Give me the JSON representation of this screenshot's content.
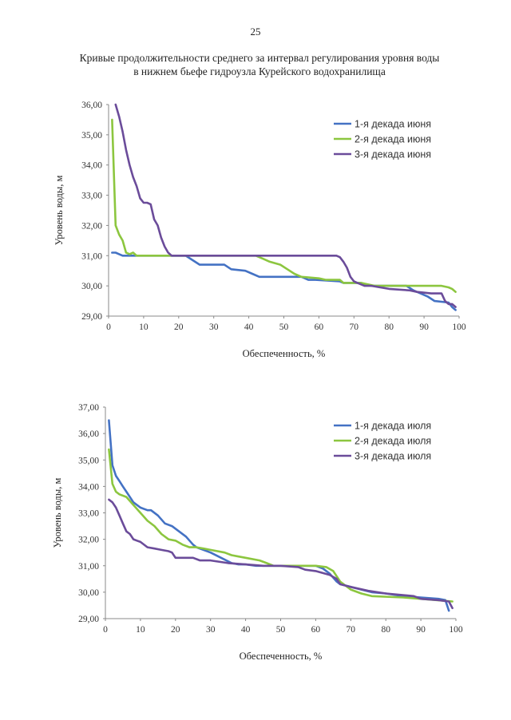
{
  "page": {
    "number": "25"
  },
  "doc_title": {
    "line1": "Кривые продолжительности среднего за интервал регулирования уровня воды",
    "line2": "в нижнем бьефе гидроузла Курейского водохранилища"
  },
  "chart_data": [
    {
      "type": "line",
      "title": "",
      "xlabel": "Обеспеченность, %",
      "ylabel": "Уровень воды, м",
      "xlim": [
        0,
        100
      ],
      "ylim": [
        29,
        36
      ],
      "xticks": [
        "0",
        "10",
        "20",
        "30",
        "40",
        "50",
        "60",
        "70",
        "80",
        "90",
        "100"
      ],
      "yticks": [
        "29,00",
        "30,00",
        "31,00",
        "32,00",
        "33,00",
        "34,00",
        "35,00",
        "36,00"
      ],
      "grid": false,
      "legend_position": "top-right",
      "series": [
        {
          "name": "1-я декада июня",
          "color": "#4472C4",
          "x": [
            1,
            2,
            3,
            4,
            8,
            22,
            24,
            26,
            33,
            35,
            39,
            41,
            43,
            50,
            55,
            57,
            59,
            66,
            67,
            72,
            75,
            85,
            87,
            89,
            91,
            93,
            97,
            98,
            99
          ],
          "y": [
            31.1,
            31.1,
            31.05,
            31.0,
            31.0,
            31.0,
            30.85,
            30.7,
            30.7,
            30.55,
            30.5,
            30.4,
            30.3,
            30.3,
            30.3,
            30.2,
            30.2,
            30.15,
            30.1,
            30.1,
            30.0,
            30.0,
            29.85,
            29.75,
            29.65,
            29.5,
            29.45,
            29.3,
            29.2
          ]
        },
        {
          "name": "2-я декада июня",
          "color": "#8CC63F",
          "x": [
            1,
            2,
            3,
            4,
            5,
            6,
            7,
            8,
            10,
            20,
            42,
            44,
            46,
            49,
            51,
            53,
            55,
            60,
            62,
            66,
            67,
            72,
            74,
            76,
            95,
            97,
            98,
            99
          ],
          "y": [
            35.5,
            32.0,
            31.7,
            31.5,
            31.1,
            31.05,
            31.1,
            31.0,
            31.0,
            31.0,
            31.0,
            30.9,
            30.8,
            30.7,
            30.55,
            30.4,
            30.3,
            30.25,
            30.2,
            30.2,
            30.1,
            30.1,
            30.05,
            30.0,
            30.0,
            29.95,
            29.9,
            29.8
          ]
        },
        {
          "name": "3-я декада июня",
          "color": "#6B4C9A",
          "x": [
            2,
            3,
            4,
            5,
            6,
            7,
            8,
            9,
            10,
            11,
            12,
            13,
            14,
            15,
            16,
            17,
            18,
            20,
            65,
            66,
            67,
            68,
            69,
            70,
            71,
            73,
            75,
            80,
            86,
            88,
            92,
            95,
            96,
            97,
            98,
            99
          ],
          "y": [
            36.0,
            35.6,
            35.1,
            34.5,
            34.0,
            33.6,
            33.3,
            32.9,
            32.75,
            32.75,
            32.7,
            32.2,
            32.0,
            31.6,
            31.3,
            31.1,
            31.0,
            31.0,
            31.0,
            30.95,
            30.8,
            30.6,
            30.3,
            30.15,
            30.1,
            30.0,
            30.0,
            29.9,
            29.85,
            29.8,
            29.75,
            29.75,
            29.5,
            29.4,
            29.4,
            29.3
          ]
        }
      ]
    },
    {
      "type": "line",
      "title": "",
      "xlabel": "Обеспеченность, %",
      "ylabel": "Уровень воды, м",
      "xlim": [
        0,
        100
      ],
      "ylim": [
        29,
        37
      ],
      "xticks": [
        "0",
        "10",
        "20",
        "30",
        "40",
        "50",
        "60",
        "70",
        "80",
        "90",
        "100"
      ],
      "yticks": [
        "29,00",
        "30,00",
        "31,00",
        "32,00",
        "33,00",
        "34,00",
        "35,00",
        "36,00",
        "37,00"
      ],
      "grid": false,
      "legend_position": "top-right",
      "series": [
        {
          "name": "1-я декада июля",
          "color": "#4472C4",
          "x": [
            1,
            2,
            3,
            4,
            5,
            6,
            8,
            10,
            12,
            13,
            15,
            17,
            19,
            21,
            23,
            25,
            26,
            28,
            30,
            33,
            36,
            38,
            40,
            43,
            45,
            50,
            55,
            60,
            62,
            64,
            66,
            67,
            70,
            73,
            76,
            80,
            85,
            90,
            95,
            97,
            98
          ],
          "y": [
            36.5,
            34.8,
            34.4,
            34.2,
            34.0,
            33.8,
            33.4,
            33.2,
            33.1,
            33.1,
            32.9,
            32.6,
            32.5,
            32.3,
            32.1,
            31.8,
            31.7,
            31.6,
            31.5,
            31.3,
            31.1,
            31.05,
            31.05,
            31.0,
            31.0,
            31.0,
            31.0,
            31.0,
            30.9,
            30.7,
            30.4,
            30.3,
            30.2,
            30.1,
            30.0,
            29.95,
            29.85,
            29.8,
            29.75,
            29.7,
            29.3
          ]
        },
        {
          "name": "2-я декада июля",
          "color": "#8CC63F",
          "x": [
            1,
            2,
            3,
            4,
            6,
            8,
            10,
            12,
            14,
            16,
            18,
            20,
            22,
            24,
            26,
            28,
            30,
            34,
            36,
            38,
            40,
            44,
            46,
            48,
            55,
            60,
            63,
            65,
            66,
            67,
            70,
            73,
            76,
            85,
            99
          ],
          "y": [
            35.4,
            34.1,
            33.8,
            33.7,
            33.6,
            33.3,
            33.0,
            32.7,
            32.5,
            32.2,
            32.0,
            31.95,
            31.8,
            31.7,
            31.7,
            31.65,
            31.6,
            31.5,
            31.4,
            31.35,
            31.3,
            31.2,
            31.1,
            31.0,
            31.0,
            31.0,
            30.95,
            30.8,
            30.6,
            30.4,
            30.1,
            29.95,
            29.85,
            29.8,
            29.65
          ]
        },
        {
          "name": "3-я декада июля",
          "color": "#6B4C9A",
          "x": [
            1,
            2,
            3,
            4,
            5,
            6,
            7,
            8,
            9,
            10,
            12,
            14,
            16,
            18,
            19,
            20,
            22,
            25,
            27,
            30,
            35,
            40,
            45,
            50,
            55,
            57,
            60,
            64,
            66,
            67,
            70,
            75,
            80,
            88,
            90,
            95,
            98,
            99
          ],
          "y": [
            33.5,
            33.4,
            33.2,
            32.9,
            32.6,
            32.3,
            32.2,
            32.0,
            31.95,
            31.9,
            31.7,
            31.65,
            31.6,
            31.55,
            31.5,
            31.3,
            31.3,
            31.3,
            31.2,
            31.2,
            31.1,
            31.05,
            31.0,
            31.0,
            30.95,
            30.85,
            30.8,
            30.65,
            30.5,
            30.3,
            30.2,
            30.05,
            29.95,
            29.85,
            29.75,
            29.7,
            29.65,
            29.4
          ]
        }
      ]
    }
  ]
}
